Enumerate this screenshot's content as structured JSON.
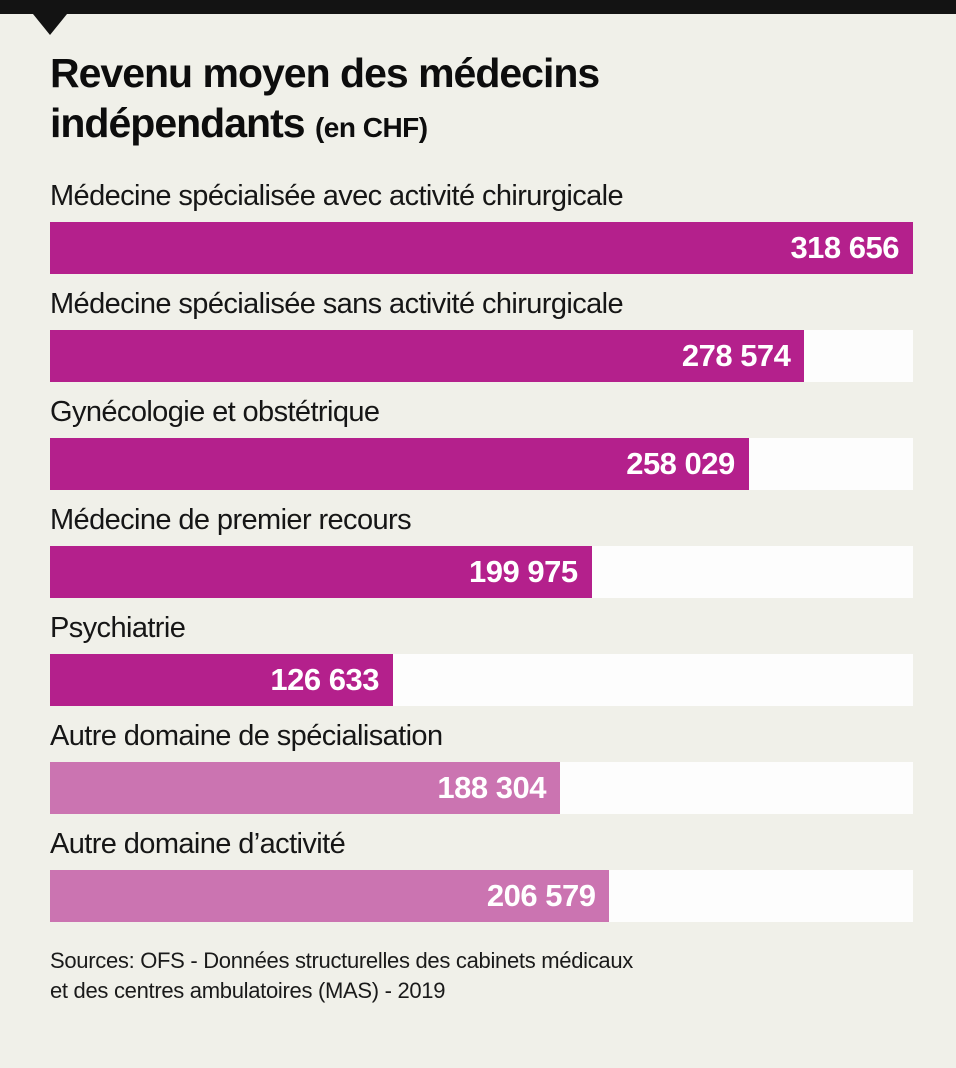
{
  "header": {
    "title_line1": "Revenu moyen des médecins",
    "title_line2": "indépendants",
    "title_unit": "(en CHF)"
  },
  "chart_data": {
    "type": "bar",
    "orientation": "horizontal",
    "title": "Revenu moyen des médecins indépendants (en CHF)",
    "unit": "CHF",
    "xlim": [
      0,
      318656
    ],
    "grid": false,
    "legend": false,
    "categories": [
      "Médecine spécialisée avec activité chirurgicale",
      "Médecine spécialisée sans activité chirurgicale",
      "Gynécologie et obstétrique",
      "Médecine de premier recours",
      "Psychiatrie",
      "Autre domaine de spécialisation",
      "Autre domaine d’activité"
    ],
    "values": [
      318656,
      278574,
      258029,
      199975,
      126633,
      188304,
      206579
    ],
    "value_labels": [
      "318 656",
      "278 574",
      "258 029",
      "199 975",
      "126 633",
      "188 304",
      "206 579"
    ],
    "bar_colors": [
      "#b4208c",
      "#b4208c",
      "#b4208c",
      "#b4208c",
      "#b4208c",
      "#cb74b1",
      "#cb74b1"
    ],
    "track_color": "#fdfdfd"
  },
  "source": {
    "line1": "Sources: OFS - Données structurelles des cabinets médicaux",
    "line2": "et des centres ambulatoires (MAS) - 2019"
  },
  "colors": {
    "background": "#f0f0e9",
    "header_strip": "#131313",
    "primary_bar": "#b4208c",
    "secondary_bar": "#cb74b1",
    "value_text": "#ffffff",
    "label_text": "#161616"
  }
}
